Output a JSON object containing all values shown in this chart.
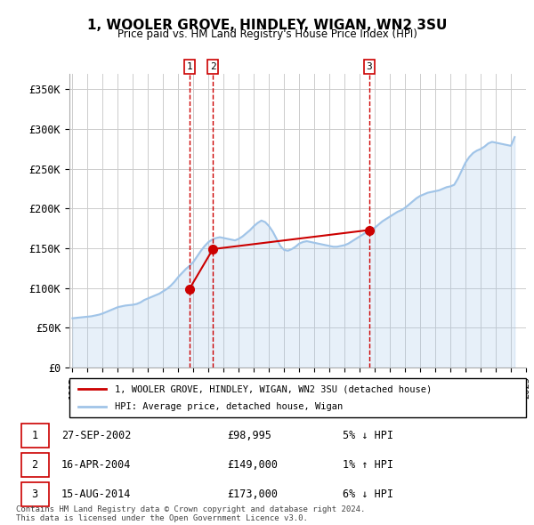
{
  "title": "1, WOOLER GROVE, HINDLEY, WIGAN, WN2 3SU",
  "subtitle": "Price paid vs. HM Land Registry's House Price Index (HPI)",
  "ylabel": "",
  "ylim": [
    0,
    370000
  ],
  "yticks": [
    0,
    50000,
    100000,
    150000,
    200000,
    250000,
    300000,
    350000
  ],
  "ytick_labels": [
    "£0",
    "£50K",
    "£100K",
    "£150K",
    "£200K",
    "£250K",
    "£300K",
    "£350K"
  ],
  "hpi_color": "#a0c4e8",
  "sale_color": "#cc0000",
  "vline_color": "#cc0000",
  "grid_color": "#cccccc",
  "bg_color": "#ffffff",
  "transactions": [
    {
      "label": "1",
      "date_num": 2002.74,
      "price": 98995,
      "note": "27-SEP-2002",
      "price_str": "£98,995",
      "pct": "5% ↓ HPI"
    },
    {
      "label": "2",
      "date_num": 2004.29,
      "price": 149000,
      "note": "16-APR-2004",
      "price_str": "£149,000",
      "pct": "1% ↑ HPI"
    },
    {
      "label": "3",
      "date_num": 2014.62,
      "price": 173000,
      "note": "15-AUG-2014",
      "price_str": "£173,000",
      "pct": "6% ↓ HPI"
    }
  ],
  "legend_sale_label": "1, WOOLER GROVE, HINDLEY, WIGAN, WN2 3SU (detached house)",
  "legend_hpi_label": "HPI: Average price, detached house, Wigan",
  "footer1": "Contains HM Land Registry data © Crown copyright and database right 2024.",
  "footer2": "This data is licensed under the Open Government Licence v3.0.",
  "hpi_data": {
    "years": [
      1995,
      1995.25,
      1995.5,
      1995.75,
      1996,
      1996.25,
      1996.5,
      1996.75,
      1997,
      1997.25,
      1997.5,
      1997.75,
      1998,
      1998.25,
      1998.5,
      1998.75,
      1999,
      1999.25,
      1999.5,
      1999.75,
      2000,
      2000.25,
      2000.5,
      2000.75,
      2001,
      2001.25,
      2001.5,
      2001.75,
      2002,
      2002.25,
      2002.5,
      2002.75,
      2003,
      2003.25,
      2003.5,
      2003.75,
      2004,
      2004.25,
      2004.5,
      2004.75,
      2005,
      2005.25,
      2005.5,
      2005.75,
      2006,
      2006.25,
      2006.5,
      2006.75,
      2007,
      2007.25,
      2007.5,
      2007.75,
      2008,
      2008.25,
      2008.5,
      2008.75,
      2009,
      2009.25,
      2009.5,
      2009.75,
      2010,
      2010.25,
      2010.5,
      2010.75,
      2011,
      2011.25,
      2011.5,
      2011.75,
      2012,
      2012.25,
      2012.5,
      2012.75,
      2013,
      2013.25,
      2013.5,
      2013.75,
      2014,
      2014.25,
      2014.5,
      2014.75,
      2015,
      2015.25,
      2015.5,
      2015.75,
      2016,
      2016.25,
      2016.5,
      2016.75,
      2017,
      2017.25,
      2017.5,
      2017.75,
      2018,
      2018.25,
      2018.5,
      2018.75,
      2019,
      2019.25,
      2019.5,
      2019.75,
      2020,
      2020.25,
      2020.5,
      2020.75,
      2021,
      2021.25,
      2021.5,
      2021.75,
      2022,
      2022.25,
      2022.5,
      2022.75,
      2023,
      2023.25,
      2023.5,
      2023.75,
      2024,
      2024.25
    ],
    "values": [
      62000,
      62500,
      63000,
      63500,
      64000,
      64500,
      65500,
      66500,
      68000,
      70000,
      72000,
      74000,
      76000,
      77000,
      78000,
      78500,
      79000,
      80000,
      82000,
      85000,
      87000,
      89000,
      91000,
      93000,
      96000,
      99000,
      103000,
      108000,
      114000,
      119000,
      124000,
      128000,
      133000,
      140000,
      147000,
      153000,
      158000,
      161000,
      163000,
      164000,
      163000,
      162000,
      161000,
      160000,
      162000,
      165000,
      169000,
      173000,
      178000,
      182000,
      185000,
      183000,
      178000,
      171000,
      162000,
      153000,
      148000,
      147000,
      149000,
      152000,
      156000,
      158000,
      159000,
      158000,
      157000,
      156000,
      155000,
      154000,
      153000,
      152000,
      152000,
      153000,
      154000,
      156000,
      159000,
      162000,
      165000,
      168000,
      171000,
      173000,
      176000,
      180000,
      184000,
      187000,
      190000,
      193000,
      196000,
      198000,
      201000,
      205000,
      209000,
      213000,
      216000,
      218000,
      220000,
      221000,
      222000,
      223000,
      225000,
      227000,
      228000,
      230000,
      238000,
      248000,
      258000,
      265000,
      270000,
      273000,
      275000,
      278000,
      282000,
      284000,
      283000,
      282000,
      281000,
      280000,
      279000,
      290000
    ]
  }
}
